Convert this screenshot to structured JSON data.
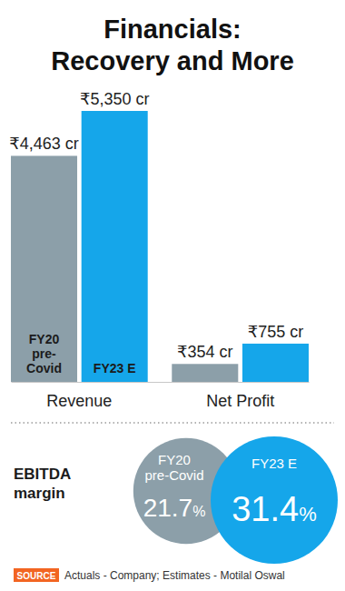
{
  "chart_data": [
    {
      "type": "bar",
      "title": "Financials: Recovery and More",
      "categories": [
        "Revenue",
        "Net Profit"
      ],
      "series": [
        {
          "name": "FY20 pre-Covid",
          "color": "#8c9fa9",
          "values": [
            4463,
            354
          ],
          "value_labels": [
            "₹4,463 cr",
            "₹354 cr"
          ]
        },
        {
          "name": "FY23 E",
          "color": "#15a6ea",
          "values": [
            5350,
            755
          ],
          "value_labels": [
            "₹5,350 cr",
            "₹755 cr"
          ]
        }
      ],
      "ylim": [
        0,
        5350
      ],
      "data_labels": true,
      "tick_labels": "x"
    },
    {
      "type": "bubble",
      "title": "EBITDA margin",
      "categories": [
        "FY20 pre-Covid",
        "FY23 E"
      ],
      "values": [
        21.7,
        31.4
      ],
      "value_labels": [
        "21.7%",
        "31.4%"
      ],
      "colors": [
        "#8c9fa9",
        "#15a6ea"
      ],
      "data_labels": true
    }
  ],
  "source": {
    "label": "SOURCE",
    "text": "Actuals - Company; Estimates - Motilal Oswal"
  }
}
